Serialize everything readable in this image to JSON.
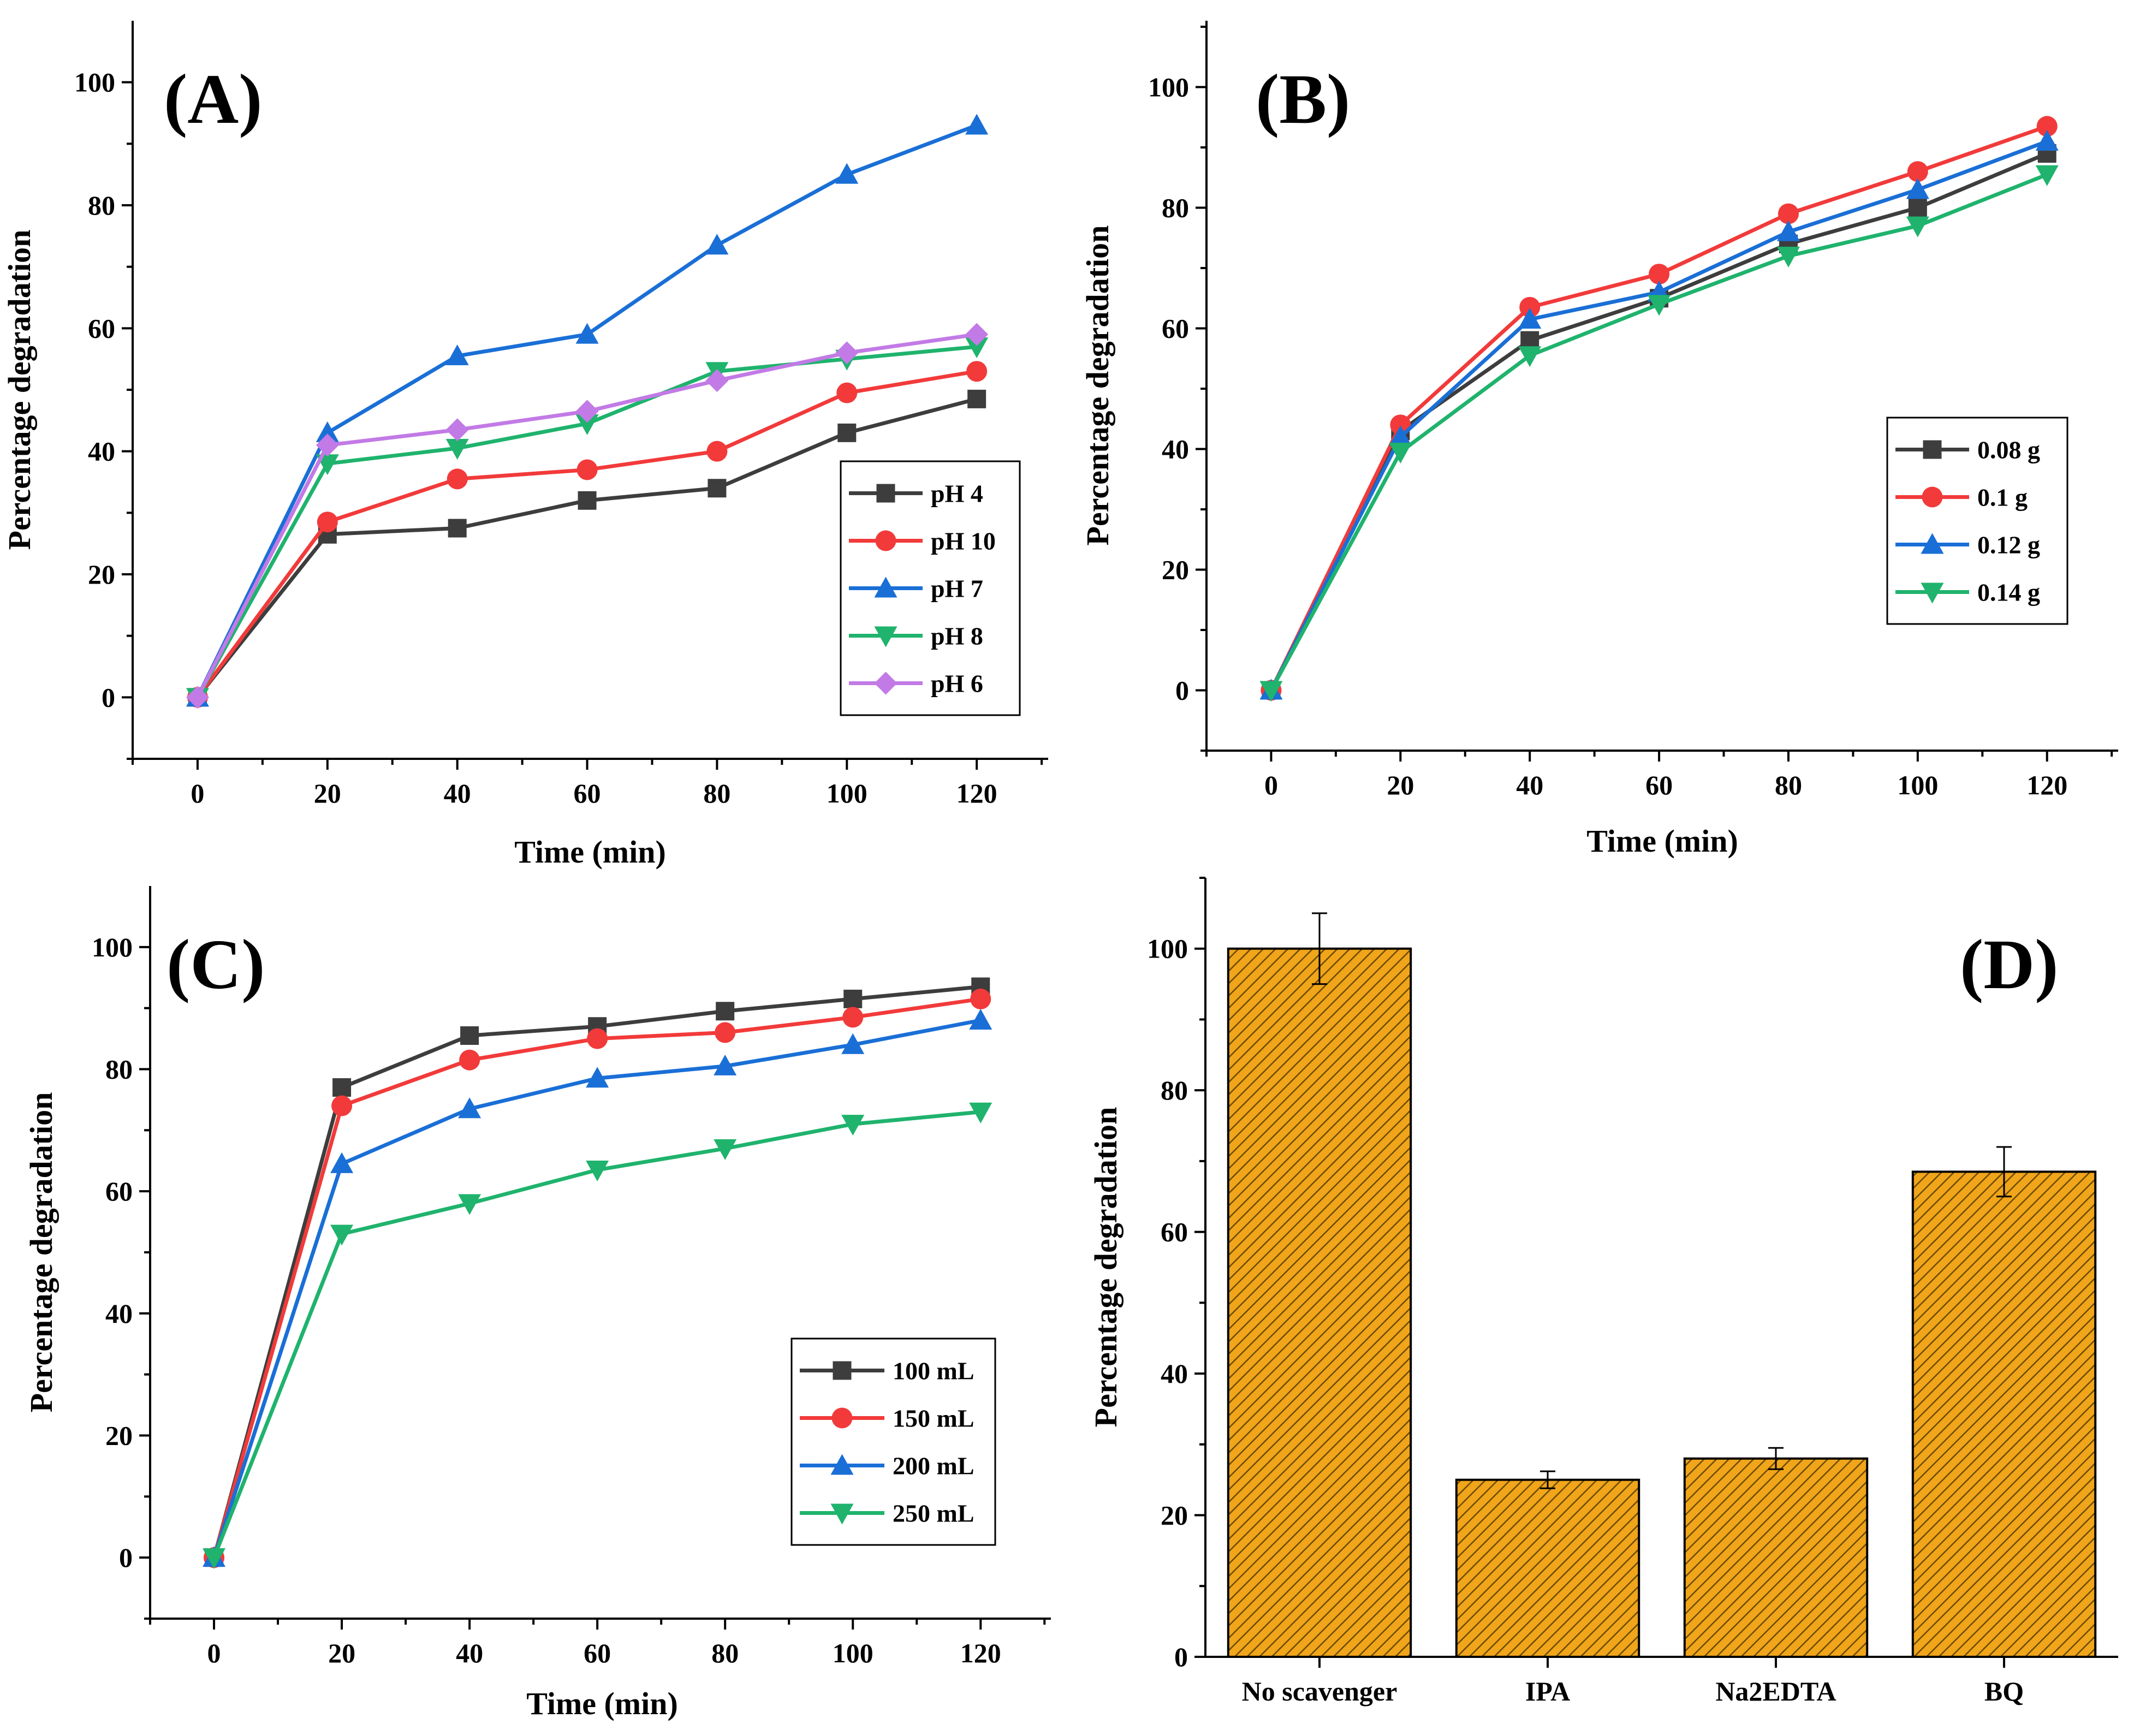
{
  "colors": {
    "black": "#3d3d3d",
    "red": "#f23a3a",
    "blue": "#1a6fd6",
    "green": "#1fb36d",
    "purple": "#c27ae6",
    "bar": "#f0a51a",
    "hatch": "#6b4a00"
  },
  "chart_data": [
    {
      "id": "A",
      "type": "line",
      "tag": "(A)",
      "xlabel": "Time (min)",
      "ylabel": "Percentage degradation",
      "x": [
        0,
        20,
        40,
        60,
        80,
        100,
        120
      ],
      "xlim": [
        -10,
        131
      ],
      "ylim": [
        -10,
        110
      ],
      "xticks": [
        0,
        20,
        40,
        60,
        80,
        100,
        120
      ],
      "yticks": [
        0,
        20,
        40,
        60,
        80,
        100
      ],
      "legend": "right-middle",
      "series": [
        {
          "name": "pH 4",
          "color": "black",
          "marker": "square",
          "values": [
            0,
            26.5,
            27.5,
            32,
            34,
            43,
            48.5
          ]
        },
        {
          "name": "pH 10",
          "color": "red",
          "marker": "circle",
          "values": [
            0,
            28.5,
            35.5,
            37,
            40,
            49.5,
            53
          ]
        },
        {
          "name": "pH 7",
          "color": "blue",
          "marker": "triangle-up",
          "values": [
            0,
            43,
            55.5,
            59,
            73.5,
            85,
            93
          ]
        },
        {
          "name": "pH 8",
          "color": "green",
          "marker": "triangle-down",
          "values": [
            0,
            38,
            40.5,
            44.5,
            53,
            55,
            57
          ]
        },
        {
          "name": "pH 6",
          "color": "purple",
          "marker": "diamond",
          "values": [
            0,
            41,
            43.5,
            46.5,
            51.5,
            56,
            59
          ]
        }
      ]
    },
    {
      "id": "B",
      "type": "line",
      "tag": "(B)",
      "xlabel": "Time (min)",
      "ylabel": "Percentage degradation",
      "x": [
        0,
        20,
        40,
        60,
        80,
        100,
        120
      ],
      "xlim": [
        -10,
        131
      ],
      "ylim": [
        -10,
        111
      ],
      "xticks": [
        0,
        20,
        40,
        60,
        80,
        100,
        120
      ],
      "yticks": [
        0,
        20,
        40,
        60,
        80,
        100
      ],
      "legend": "right-middle",
      "series": [
        {
          "name": "0.08 g",
          "color": "black",
          "marker": "square",
          "values": [
            0,
            43,
            58,
            65,
            74,
            80,
            89
          ]
        },
        {
          "name": "0.1 g",
          "color": "red",
          "marker": "circle",
          "values": [
            0,
            44,
            63.5,
            69,
            79,
            86,
            93.5
          ]
        },
        {
          "name": "0.12 g",
          "color": "blue",
          "marker": "triangle-up",
          "values": [
            0,
            42,
            61.5,
            66,
            76,
            83,
            91
          ]
        },
        {
          "name": "0.14 g",
          "color": "green",
          "marker": "triangle-down",
          "values": [
            0,
            39.5,
            55.5,
            64,
            72,
            77,
            85.5
          ]
        }
      ]
    },
    {
      "id": "C",
      "type": "line",
      "tag": "(C)",
      "xlabel": "Time (min)",
      "ylabel": "Percentage degradation",
      "x": [
        0,
        20,
        40,
        60,
        80,
        100,
        120
      ],
      "xlim": [
        -10,
        131
      ],
      "ylim": [
        -10,
        110
      ],
      "xticks": [
        0,
        20,
        40,
        60,
        80,
        100,
        120
      ],
      "yticks": [
        0,
        20,
        40,
        60,
        80,
        100
      ],
      "legend": "bottom-right",
      "series": [
        {
          "name": "100 mL",
          "color": "black",
          "marker": "square",
          "values": [
            0,
            77,
            85.5,
            87,
            89.5,
            91.5,
            93.5
          ]
        },
        {
          "name": "150 mL",
          "color": "red",
          "marker": "circle",
          "values": [
            0,
            74,
            81.5,
            85,
            86,
            88.5,
            91.5
          ]
        },
        {
          "name": "200 mL",
          "color": "blue",
          "marker": "triangle-up",
          "values": [
            0,
            64.5,
            73.5,
            78.5,
            80.5,
            84,
            88
          ]
        },
        {
          "name": "250 mL",
          "color": "green",
          "marker": "triangle-down",
          "values": [
            0,
            53,
            58,
            63.5,
            67,
            71,
            73
          ]
        }
      ]
    },
    {
      "id": "D",
      "type": "bar",
      "tag": "(D)",
      "xlabel": "",
      "ylabel": "Percentage degradation",
      "categories": [
        "No scavenger",
        "IPA",
        "Na2EDTA",
        "BQ"
      ],
      "values": [
        100,
        25,
        28,
        68.5
      ],
      "errors": [
        5,
        1.2,
        1.5,
        3.5
      ],
      "ylim": [
        0,
        110
      ],
      "yticks": [
        0,
        20,
        40,
        60,
        80,
        100
      ],
      "color": "bar"
    }
  ]
}
